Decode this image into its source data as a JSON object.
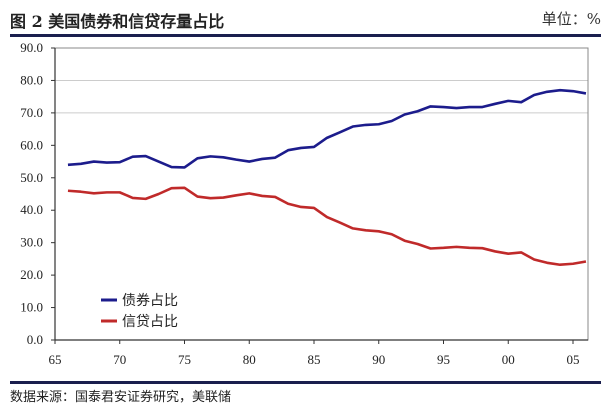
{
  "header": {
    "title": "图 2 美国债券和信贷存量占比",
    "unit": "单位：%"
  },
  "footer": {
    "source": "数据来源：国泰君安证券研究，美联储"
  },
  "chart_data": {
    "type": "line",
    "title": "美国债券和信贷存量占比",
    "xlabel": "",
    "ylabel": "",
    "ylim": [
      0,
      90
    ],
    "yticks": [
      "0.0",
      "10.0",
      "20.0",
      "30.0",
      "40.0",
      "50.0",
      "60.0",
      "70.0",
      "80.0",
      "90.0"
    ],
    "xticks": [
      "65",
      "70",
      "75",
      "80",
      "85",
      "90",
      "95",
      "00",
      "05"
    ],
    "gridlines": [
      70,
      80
    ],
    "legend_position": "bottom-left",
    "x": [
      1966,
      1967,
      1968,
      1969,
      1970,
      1971,
      1972,
      1973,
      1974,
      1975,
      1976,
      1977,
      1978,
      1979,
      1980,
      1981,
      1982,
      1983,
      1984,
      1985,
      1986,
      1987,
      1988,
      1989,
      1990,
      1991,
      1992,
      1993,
      1994,
      1995,
      1996,
      1997,
      1998,
      1999,
      2000,
      2001,
      2002,
      2003,
      2004,
      2005,
      2006
    ],
    "series": [
      {
        "name": "债券占比",
        "color": "#1c1c8c",
        "values": [
          54,
          54.3,
          55,
          54.7,
          54.8,
          56.5,
          56.7,
          55,
          53.3,
          53.2,
          56,
          56.6,
          56.3,
          55.6,
          55,
          55.8,
          56.2,
          58.5,
          59.2,
          59.5,
          62.3,
          64,
          65.8,
          66.3,
          66.5,
          67.5,
          69.5,
          70.5,
          72,
          71.8,
          71.5,
          71.8,
          71.8,
          72.8,
          73.7,
          73.3,
          75.5,
          76.5,
          77,
          76.7,
          76
        ]
      },
      {
        "name": "信贷占比",
        "color": "#c02a2a",
        "values": [
          46,
          45.7,
          45.2,
          45.5,
          45.5,
          43.8,
          43.5,
          45,
          46.8,
          46.9,
          44.2,
          43.7,
          43.9,
          44.6,
          45.2,
          44.4,
          44.1,
          42,
          41,
          40.7,
          37.9,
          36.2,
          34.4,
          33.8,
          33.5,
          32.6,
          30.6,
          29.6,
          28.2,
          28.4,
          28.7,
          28.4,
          28.3,
          27.3,
          26.6,
          27,
          24.8,
          23.8,
          23.2,
          23.5,
          24.2
        ]
      }
    ]
  }
}
